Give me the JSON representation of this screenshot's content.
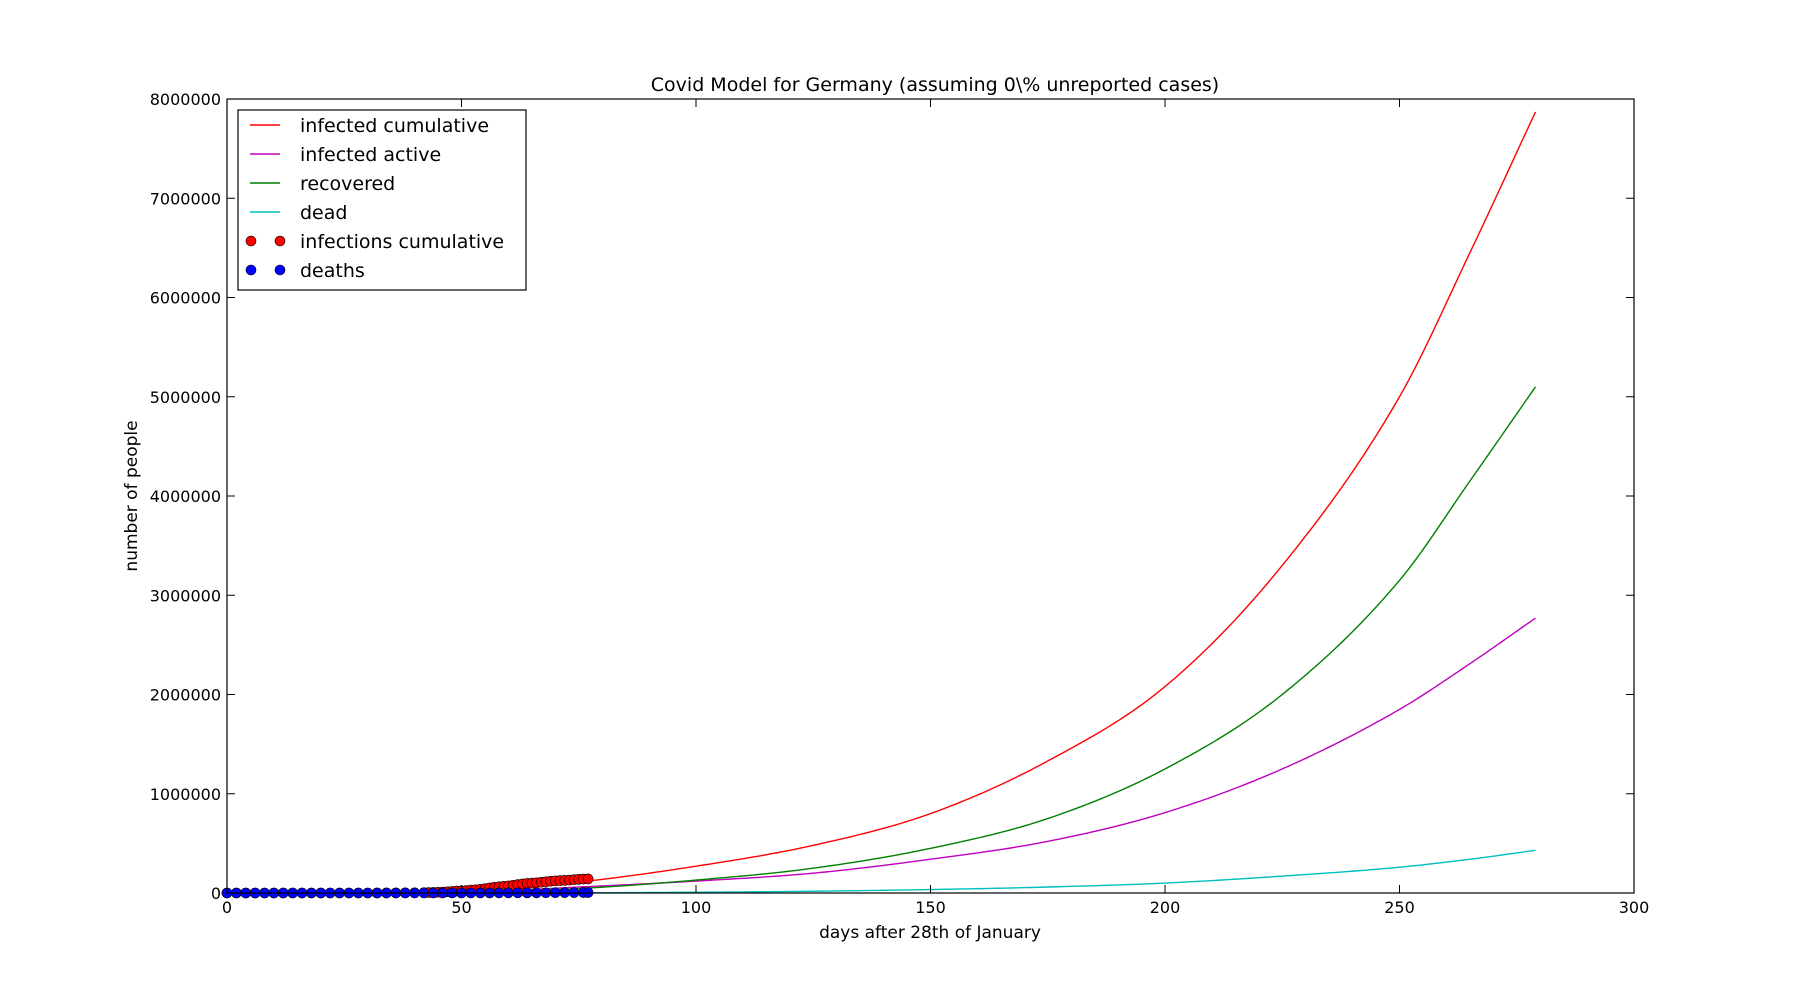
{
  "chart_data": {
    "type": "line",
    "title": "Covid Model for Germany (assuming 0\\% unreported cases)",
    "xlabel": "days after 28th of January",
    "ylabel": "number of people",
    "xlim": [
      0,
      300
    ],
    "ylim": [
      0,
      8000000
    ],
    "xticks": [
      "0",
      "50",
      "100",
      "150",
      "200",
      "250",
      "300"
    ],
    "yticks": [
      "0",
      "1000000",
      "2000000",
      "3000000",
      "4000000",
      "5000000",
      "6000000",
      "7000000",
      "8000000"
    ],
    "grid": false,
    "legend_position": "top-left",
    "series": [
      {
        "name": "infected cumulative",
        "kind": "line",
        "color": "#ff0000",
        "x": [
          0,
          25,
          50,
          75,
          100,
          125,
          150,
          175,
          200,
          225,
          250,
          265,
          279
        ],
        "y": [
          0,
          2000,
          10000,
          110000,
          270000,
          480000,
          800000,
          1330000,
          2080000,
          3300000,
          5000000,
          6450000,
          7870000
        ]
      },
      {
        "name": "infected active",
        "kind": "line",
        "color": "#bf00bf",
        "x": [
          0,
          25,
          50,
          75,
          100,
          125,
          150,
          175,
          200,
          225,
          250,
          265,
          279
        ],
        "y": [
          0,
          1500,
          8000,
          60000,
          120000,
          200000,
          340000,
          520000,
          810000,
          1250000,
          1850000,
          2310000,
          2770000
        ]
      },
      {
        "name": "recovered",
        "kind": "line",
        "color": "#008000",
        "x": [
          0,
          25,
          50,
          75,
          100,
          125,
          150,
          175,
          200,
          225,
          250,
          265,
          279
        ],
        "y": [
          0,
          400,
          2000,
          45000,
          130000,
          250000,
          450000,
          750000,
          1250000,
          2000000,
          3150000,
          4150000,
          5100000
        ]
      },
      {
        "name": "dead",
        "kind": "line",
        "color": "#00bfbf",
        "x": [
          0,
          25,
          50,
          75,
          100,
          125,
          150,
          175,
          200,
          225,
          250,
          265,
          279
        ],
        "y": [
          0,
          50,
          200,
          2000,
          8000,
          18000,
          35000,
          60000,
          100000,
          170000,
          260000,
          340000,
          430000
        ]
      },
      {
        "name": "infections cumulative",
        "kind": "scatter",
        "color": "#ff0000",
        "x": [
          0,
          2,
          4,
          6,
          8,
          10,
          12,
          14,
          16,
          18,
          20,
          22,
          24,
          26,
          28,
          30,
          32,
          34,
          36,
          38,
          40,
          42,
          43,
          44,
          45,
          46,
          47,
          48,
          49,
          50,
          51,
          52,
          53,
          54,
          55,
          56,
          57,
          58,
          59,
          60,
          61,
          62,
          63,
          64,
          65,
          66,
          67,
          68,
          69,
          70,
          71,
          72,
          73,
          74,
          75,
          76,
          77
        ],
        "y": [
          4,
          4,
          5,
          8,
          12,
          12,
          14,
          16,
          16,
          16,
          16,
          16,
          17,
          18,
          48,
          150,
          350,
          800,
          1100,
          1600,
          2400,
          3700,
          4800,
          5800,
          7200,
          9300,
          12300,
          15300,
          19800,
          22200,
          24900,
          29100,
          32800,
          37300,
          43900,
          50800,
          57300,
          61900,
          66900,
          71800,
          77900,
          84800,
          91200,
          96100,
          100100,
          103300,
          107700,
          113300,
          118200,
          122200,
          125100,
          127500,
          130500,
          133800,
          137400,
          139900,
          141400
        ]
      },
      {
        "name": "deaths",
        "kind": "scatter",
        "color": "#0000ff",
        "x": [
          0,
          2,
          4,
          6,
          8,
          10,
          12,
          14,
          16,
          18,
          20,
          22,
          24,
          26,
          28,
          30,
          32,
          34,
          36,
          38,
          40,
          42,
          44,
          46,
          48,
          50,
          52,
          54,
          56,
          58,
          60,
          62,
          64,
          66,
          68,
          70,
          72,
          74,
          76,
          77
        ],
        "y": [
          0,
          0,
          0,
          0,
          0,
          0,
          0,
          0,
          0,
          0,
          0,
          0,
          0,
          0,
          0,
          0,
          0,
          0,
          2,
          2,
          3,
          9,
          17,
          28,
          68,
          126,
          206,
          389,
          583,
          775,
          1017,
          1275,
          1584,
          1861,
          2349,
          2767,
          3254,
          3569,
          4052,
          4294
        ]
      }
    ]
  }
}
